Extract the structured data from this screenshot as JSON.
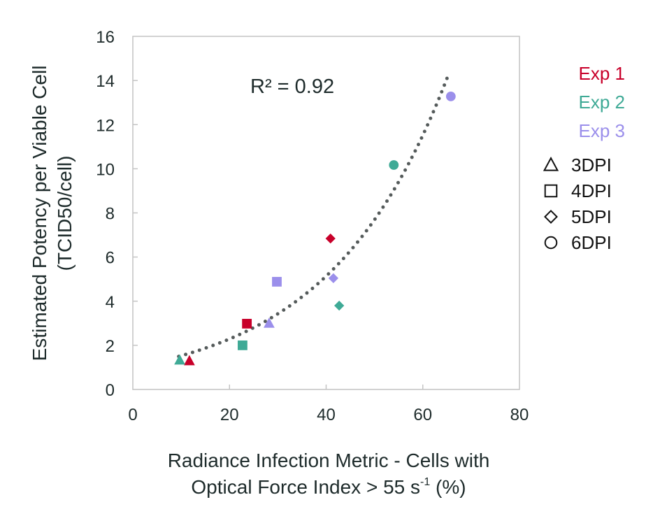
{
  "chart_data": {
    "type": "scatter",
    "title": "",
    "xlabel_line1": "Radiance Infection Metric - Cells with",
    "xlabel_line2_prefix": "Optical Force Index > 55 s",
    "xlabel_line2_sup": "-1",
    "xlabel_line2_suffix": " (%)",
    "ylabel_line1": "Estimated Potency per Viable Cell",
    "ylabel_line2": "(TCID50/cell)",
    "xlim": [
      0,
      80
    ],
    "ylim": [
      0,
      16
    ],
    "xticks": [
      0,
      20,
      40,
      60,
      80
    ],
    "yticks": [
      0,
      2,
      4,
      6,
      8,
      10,
      12,
      14,
      16
    ],
    "grid": false,
    "annotation": "R² = 0.92",
    "trendline": {
      "type": "exponential",
      "a": 1.02,
      "b": 0.0404,
      "x_range": [
        9.5,
        65.5
      ],
      "style": "dotted",
      "color": "#555b5b"
    },
    "series": [
      {
        "name": "Exp 1",
        "color": "#c8002a",
        "points": [
          {
            "x": 11.7,
            "y": 1.3,
            "dpi": "3DPI"
          },
          {
            "x": 23.6,
            "y": 2.98,
            "dpi": "4DPI"
          },
          {
            "x": 40.9,
            "y": 6.84,
            "dpi": "5DPI"
          }
        ]
      },
      {
        "name": "Exp 2",
        "color": "#3faa96",
        "points": [
          {
            "x": 9.7,
            "y": 1.33,
            "dpi": "3DPI"
          },
          {
            "x": 22.7,
            "y": 2.0,
            "dpi": "4DPI"
          },
          {
            "x": 42.7,
            "y": 3.8,
            "dpi": "5DPI"
          },
          {
            "x": 54.0,
            "y": 10.17,
            "dpi": "6DPI"
          }
        ]
      },
      {
        "name": "Exp 3",
        "color": "#9b8feb",
        "points": [
          {
            "x": 28.2,
            "y": 3.0,
            "dpi": "3DPI"
          },
          {
            "x": 29.8,
            "y": 4.88,
            "dpi": "4DPI"
          },
          {
            "x": 41.5,
            "y": 5.04,
            "dpi": "5DPI"
          },
          {
            "x": 65.8,
            "y": 13.28,
            "dpi": "6DPI"
          }
        ]
      }
    ],
    "legend": {
      "placement": "right",
      "colors": [
        {
          "label": "Exp 1",
          "color": "#c8002a"
        },
        {
          "label": "Exp 2",
          "color": "#3faa96"
        },
        {
          "label": "Exp 3",
          "color": "#9b8feb"
        }
      ],
      "shapes": [
        {
          "label": "3DPI",
          "shape": "triangle"
        },
        {
          "label": "4DPI",
          "shape": "square"
        },
        {
          "label": "5DPI",
          "shape": "diamond"
        },
        {
          "label": "6DPI",
          "shape": "circle"
        }
      ]
    }
  }
}
